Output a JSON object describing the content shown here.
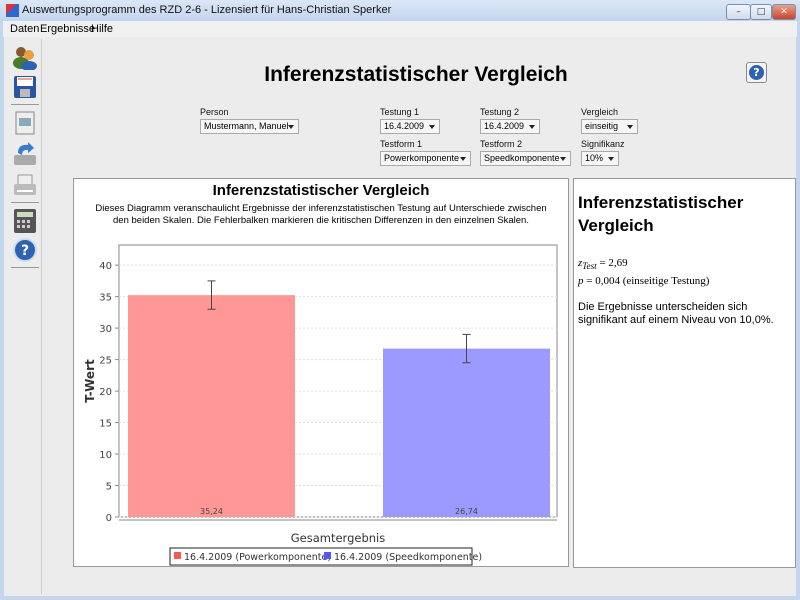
{
  "window": {
    "title": "Auswertungsprogramm des RZD 2-6  - Lizensiert für Hans-Christian Sperker",
    "minimize": "–",
    "maximize": "□",
    "close": "✕"
  },
  "menu": [
    "Daten",
    "Ergebnisse",
    "Hilfe"
  ],
  "toolbar": [
    "persons-icon",
    "save-icon",
    "report-icon",
    "import-icon",
    "print-icon",
    "calculator-icon",
    "help-icon"
  ],
  "page": {
    "title": "Inferenzstatistischer Vergleich",
    "help": "?"
  },
  "form": {
    "person": {
      "label": "Person",
      "value": "Mustermann, Manuel"
    },
    "testung1": {
      "label": "Testung 1",
      "value": "16.4.2009"
    },
    "testung2": {
      "label": "Testung 2",
      "value": "16.4.2009"
    },
    "vergleich": {
      "label": "Vergleich",
      "value": "einseitig"
    },
    "testform1": {
      "label": "Testform 1",
      "value": "Powerkomponente"
    },
    "testform2": {
      "label": "Testform 2",
      "value": "Speedkomponente"
    },
    "signifikanz": {
      "label": "Signifikanz",
      "value": "10%"
    }
  },
  "info": {
    "title": "Inferenzstatistischer Vergleich",
    "z_label": "z",
    "z_sub": "Test",
    "z_value": "= 2,69",
    "p_label": "p",
    "p_value": "= 0,004 (einseitige Testung)",
    "text": "Die Ergebnisse unterscheiden sich signifikant auf einem Niveau von 10,0%."
  },
  "chart_data": {
    "type": "bar",
    "title": "Inferenzstatistischer Vergleich",
    "subtitle": "Dieses Diagramm veranschaulicht Ergebnisse der inferenzstatistischen Testung auf Unterschiede zwischen den beiden Skalen. Die Fehlerbalken markieren die kritischen Differenzen in den einzelnen Skalen.",
    "xlabel": "Gesamtergebnis",
    "ylabel": "T-Wert",
    "ylim": [
      0,
      43.2
    ],
    "yticks": [
      0,
      5,
      10,
      15,
      20,
      25,
      30,
      35,
      40
    ],
    "grid": true,
    "legend_position": "bottom",
    "categories": [
      "Gesamtergebnis"
    ],
    "series": [
      {
        "name": "16.4.2009 (Powerkomponente)",
        "values": [
          35.24
        ],
        "label": "35,24",
        "error": [
          33.0,
          37.5
        ],
        "color": "#ff9797",
        "legend_color": "#ff5555"
      },
      {
        "name": "16.4.2009 (Speedkomponente)",
        "values": [
          26.74
        ],
        "label": "26,74",
        "error": [
          24.5,
          29.0
        ],
        "color": "#9a9aff",
        "legend_color": "#5555ff"
      }
    ]
  }
}
